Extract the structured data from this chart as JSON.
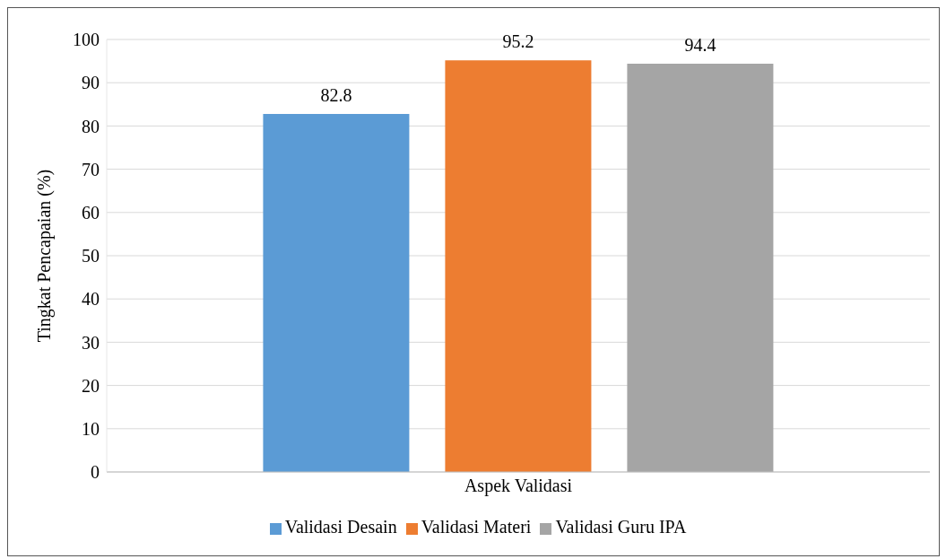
{
  "chart_data": {
    "type": "bar",
    "categories": [
      "Aspek Validasi"
    ],
    "ylabel": "Tingkat Pencapaian (%)",
    "series": [
      {
        "name": "Validasi Desain",
        "color": "#5b9bd5",
        "values": [
          82.8
        ]
      },
      {
        "name": "Validasi Materi",
        "color": "#ed7d31",
        "values": [
          95.2
        ]
      },
      {
        "name": "Validasi Guru IPA",
        "color": "#a5a5a5",
        "values": [
          94.4
        ]
      }
    ],
    "ylim": [
      0,
      100
    ],
    "yticks": [
      0,
      10,
      20,
      30,
      40,
      50,
      60,
      70,
      80,
      90,
      100
    ],
    "grid": "y",
    "legend": "bottom",
    "data_labels": true
  }
}
